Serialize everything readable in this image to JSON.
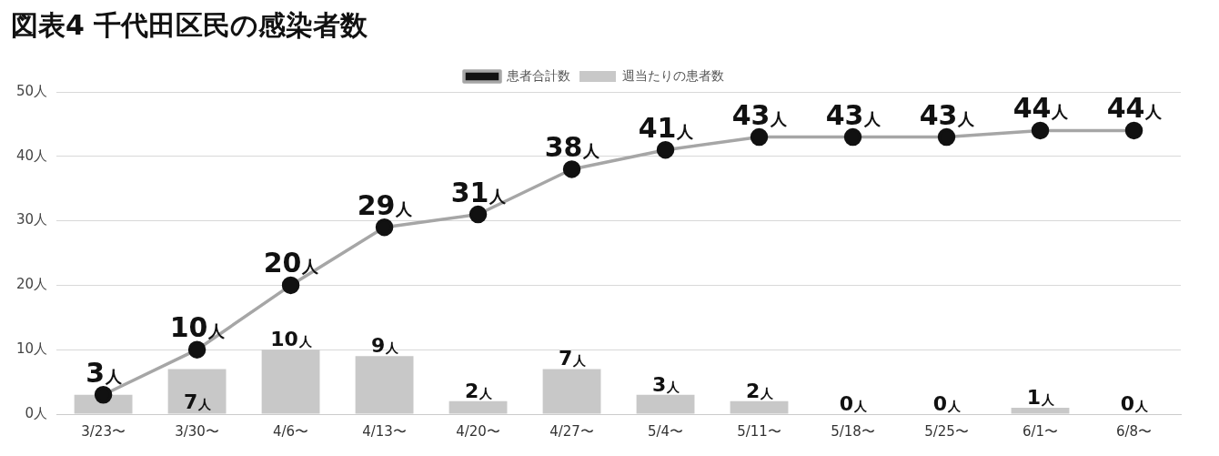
{
  "chart_data": {
    "type": "bar",
    "title": "図表4 千代田区民の感染者数",
    "categories": [
      "3/23〜",
      "3/30〜",
      "4/6〜",
      "4/13〜",
      "4/20〜",
      "4/27〜",
      "5/4〜",
      "5/11〜",
      "5/18〜",
      "5/25〜",
      "6/1〜",
      "6/8〜"
    ],
    "series": [
      {
        "name": "週当たりの患者数",
        "color": "#c8c8c8",
        "values": [
          3,
          7,
          10,
          9,
          2,
          7,
          3,
          2,
          0,
          0,
          1,
          0
        ],
        "value_labels": [
          null,
          "7人",
          "10人",
          "9人",
          "2人",
          "7人",
          "3人",
          "2人",
          "0人",
          "0人",
          "1人",
          "0人"
        ]
      },
      {
        "name": "患者合計数",
        "type": "line",
        "color": "#a6a6a6",
        "values": [
          3,
          10,
          20,
          29,
          31,
          38,
          41,
          43,
          43,
          43,
          44,
          44
        ],
        "value_labels": [
          "3人",
          "10人",
          "20人",
          "29人",
          "31人",
          "38人",
          "41人",
          "43人",
          "43人",
          "43人",
          "44人",
          "44人"
        ]
      }
    ],
    "ylim": [
      0,
      50
    ],
    "yticks": [
      {
        "value": 0,
        "label": "0人"
      },
      {
        "value": 10,
        "label": "10人"
      },
      {
        "value": 20,
        "label": "20人"
      },
      {
        "value": 30,
        "label": "30人"
      },
      {
        "value": 40,
        "label": "40人"
      },
      {
        "value": 50,
        "label": "50人"
      }
    ],
    "grid": "y",
    "legend": "top",
    "marker": "circle",
    "line_style": "solid"
  }
}
